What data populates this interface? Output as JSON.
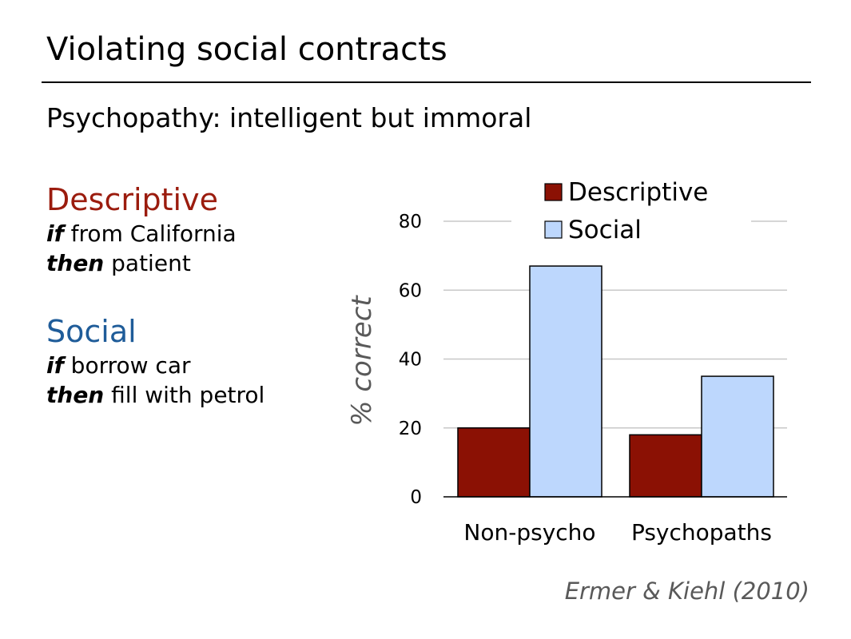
{
  "slide": {
    "title": "Violating social contracts",
    "subtitle": "Psychopathy: intelligent but immoral",
    "citation": "Ermer & Kiehl (2010)"
  },
  "rules": {
    "descriptive": {
      "heading": "Descriptive",
      "color": "#9B1C0E",
      "if_word": "if",
      "if_text": " from California",
      "then_word": "then",
      "then_text": " patient"
    },
    "social": {
      "heading": "Social",
      "color": "#1F5C99",
      "if_word": "if",
      "if_text": " borrow car",
      "then_word": "then",
      "then_text": " fill with petrol"
    }
  },
  "chart_data": {
    "type": "bar",
    "categories": [
      "Non-psycho",
      "Psychopaths"
    ],
    "series": [
      {
        "name": "Descriptive",
        "values": [
          20,
          18
        ],
        "color": "#8B1104"
      },
      {
        "name": "Social",
        "values": [
          67,
          35
        ],
        "color": "#BDD7FD"
      }
    ],
    "ylabel": "% correct",
    "ylim": [
      0,
      80
    ],
    "yticks": [
      0,
      20,
      40,
      60,
      80
    ],
    "grid": true,
    "legend_position": "top-right"
  }
}
